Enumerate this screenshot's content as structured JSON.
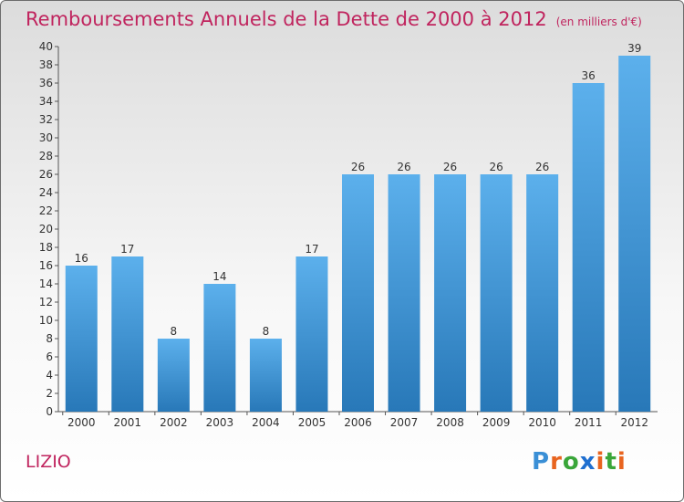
{
  "title": "Remboursements Annuels de la Dette de 2000 à 2012",
  "subtitle": "(en milliers d'€)",
  "commune": "LIZIO",
  "logo": {
    "letters": [
      "P",
      "r",
      "o",
      "x",
      "i",
      "t",
      "i"
    ],
    "colors": [
      "#3a8fd6",
      "#e8641f",
      "#3aa63a",
      "#1f6fd0",
      "#e8641f",
      "#3aa63a",
      "#e8641f"
    ]
  },
  "chart_data": {
    "type": "bar",
    "title": "Remboursements Annuels de la Dette de 2000 à 2012",
    "subtitle": "(en milliers d'€)",
    "categories": [
      "2000",
      "2001",
      "2002",
      "2003",
      "2004",
      "2005",
      "2006",
      "2007",
      "2008",
      "2009",
      "2010",
      "2011",
      "2012"
    ],
    "values": [
      16,
      17,
      8,
      14,
      8,
      17,
      26,
      26,
      26,
      26,
      26,
      36,
      39
    ],
    "ylim": [
      0,
      40
    ],
    "yticks": [
      0,
      2,
      4,
      6,
      8,
      10,
      12,
      14,
      16,
      18,
      20,
      22,
      24,
      26,
      28,
      30,
      32,
      34,
      36,
      38,
      40
    ],
    "grid": false,
    "bar_color": "#3b93d8",
    "data_labels": true
  }
}
